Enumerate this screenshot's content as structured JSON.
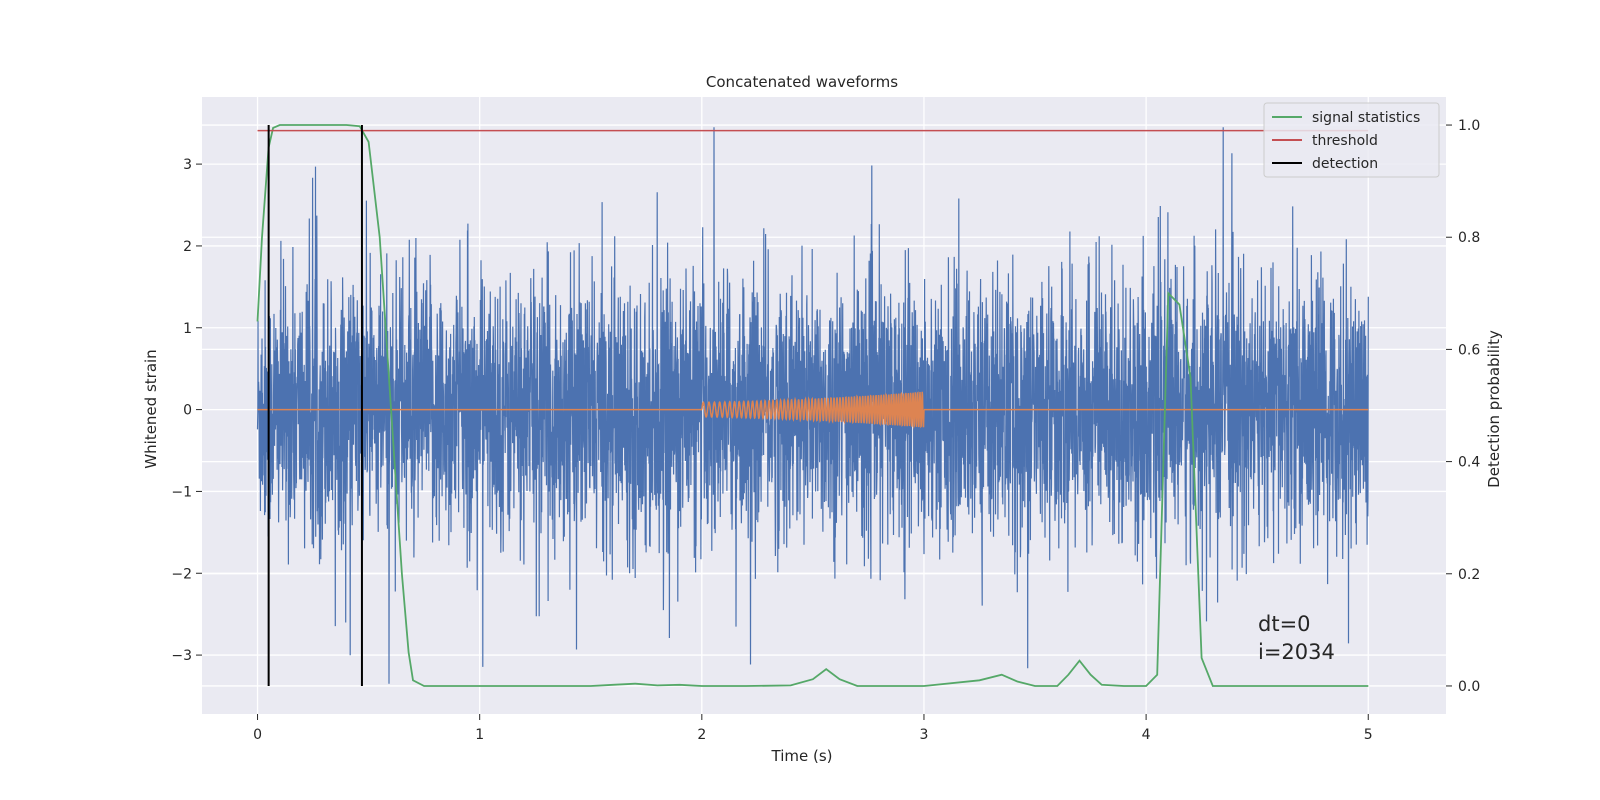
{
  "chart_data": {
    "type": "line",
    "title": "Concatenated waveforms",
    "xlabel": "Time (s)",
    "ylabel_left": "Whitened strain",
    "ylabel_right": "Detection probability",
    "xlim": [
      -0.25,
      5.35
    ],
    "ylim_left": [
      -3.72,
      3.82
    ],
    "ylim_right": [
      -0.05,
      1.05
    ],
    "xticks": [
      0,
      1,
      2,
      3,
      4,
      5
    ],
    "yticks_left": [
      -3,
      -2,
      -1,
      0,
      1,
      2,
      3
    ],
    "yticks_right": [
      0.0,
      0.2,
      0.4,
      0.6,
      0.8,
      1.0
    ],
    "grid": true,
    "legend_position": "top-right",
    "legend": [
      {
        "name": "signal statistics",
        "color": "#55a868"
      },
      {
        "name": "threshold",
        "color": "#c44e52"
      },
      {
        "name": "detection",
        "color": "#000000"
      }
    ],
    "series": [
      {
        "name": "whitened strain (noise)",
        "axis": "left",
        "color": "#4c72b0",
        "x_range": [
          0,
          5
        ],
        "approx_amplitude": 2.2
      },
      {
        "name": "injected waveform",
        "axis": "left",
        "color": "#dd8452",
        "x": [
          0,
          2,
          3,
          3.0,
          5
        ],
        "y": [
          0,
          0,
          0.22,
          0,
          0
        ]
      },
      {
        "name": "signal statistics",
        "axis": "right",
        "color": "#55a868",
        "x": [
          0,
          0.02,
          0.05,
          0.07,
          0.1,
          0.2,
          0.3,
          0.4,
          0.46,
          0.5,
          0.55,
          0.6,
          0.65,
          0.68,
          0.7,
          0.75,
          1.0,
          1.5,
          1.6,
          1.7,
          1.8,
          1.9,
          2.0,
          2.2,
          2.4,
          2.5,
          2.56,
          2.62,
          2.7,
          3.0,
          3.25,
          3.35,
          3.42,
          3.5,
          3.6,
          3.65,
          3.7,
          3.75,
          3.8,
          3.9,
          4.0,
          4.05,
          4.1,
          4.15,
          4.2,
          4.25,
          4.3,
          4.5,
          4.8,
          5.0
        ],
        "y": [
          0.65,
          0.8,
          0.96,
          0.995,
          1.0,
          1.0,
          1.0,
          1.0,
          0.998,
          0.97,
          0.8,
          0.5,
          0.2,
          0.06,
          0.01,
          0.0,
          0.0,
          0.0,
          0.002,
          0.004,
          0.001,
          0.002,
          0.0,
          0.0,
          0.001,
          0.012,
          0.03,
          0.012,
          0.0,
          0.0,
          0.01,
          0.02,
          0.008,
          0.0,
          0.0,
          0.02,
          0.045,
          0.02,
          0.002,
          0.0,
          0.0,
          0.02,
          0.7,
          0.68,
          0.55,
          0.05,
          0.0,
          0.0,
          0.0,
          0.0
        ]
      },
      {
        "name": "threshold",
        "axis": "right",
        "color": "#c44e52",
        "x": [
          0,
          5
        ],
        "y": [
          0.99,
          0.99
        ]
      },
      {
        "name": "detection",
        "axis": "right",
        "color": "#000000",
        "x": [
          0.05,
          0.47
        ],
        "y_range": [
          0,
          1
        ]
      }
    ],
    "annotation": {
      "line1": "dt=0",
      "line2": "i=2034",
      "x": 4.5,
      "y": -3.0
    }
  }
}
